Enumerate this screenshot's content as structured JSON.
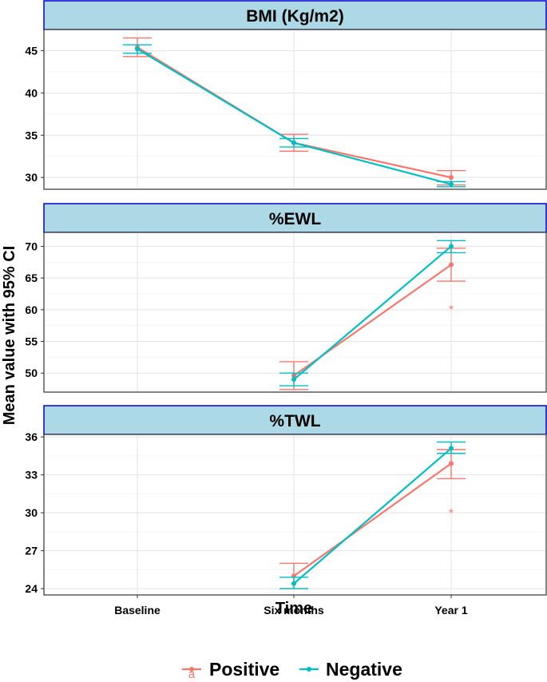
{
  "chart_data": {
    "type": "line",
    "x_label": "Time",
    "y_label": "Mean value with 95% CI",
    "categories": [
      "Baseline",
      "Six months",
      "Year 1"
    ],
    "grid": true,
    "legend_position": "bottom",
    "colors": {
      "Positive": "#F8766D",
      "Negative": "#00BFC4",
      "strip_fill": "#ADD8E6",
      "strip_border": "#0000CD"
    },
    "legend": [
      {
        "name": "Positive",
        "key_glyph": "a"
      },
      {
        "name": "Negative",
        "key_glyph": ""
      }
    ],
    "panels": [
      {
        "title": "BMI (Kg/m2)",
        "ylim": [
          28.6,
          47.5
        ],
        "yticks": [
          30,
          35,
          40,
          45
        ],
        "series": [
          {
            "name": "Positive",
            "x": [
              "Baseline",
              "Six months",
              "Year 1"
            ],
            "y": [
              45.4,
              34.1,
              30.0
            ],
            "lower": [
              44.3,
              33.1,
              29.1
            ],
            "upper": [
              46.5,
              35.1,
              30.8
            ]
          },
          {
            "name": "Negative",
            "x": [
              "Baseline",
              "Six months",
              "Year 1"
            ],
            "y": [
              45.2,
              34.1,
              29.2
            ],
            "lower": [
              44.7,
              33.6,
              28.9
            ],
            "upper": [
              45.7,
              34.6,
              29.5
            ]
          }
        ],
        "annotations": []
      },
      {
        "title": "%EWL",
        "ylim": [
          47.0,
          72.2
        ],
        "yticks": [
          50,
          55,
          60,
          65,
          70
        ],
        "series": [
          {
            "name": "Positive",
            "x": [
              "Six months",
              "Year 1"
            ],
            "y": [
              49.6,
              67.1
            ],
            "lower": [
              47.4,
              64.5
            ],
            "upper": [
              51.8,
              69.7
            ]
          },
          {
            "name": "Negative",
            "x": [
              "Six months",
              "Year 1"
            ],
            "y": [
              49.0,
              70.0
            ],
            "lower": [
              48.0,
              69.0
            ],
            "upper": [
              50.0,
              70.9
            ]
          }
        ],
        "annotations": [
          {
            "text": "*",
            "x": "Year 1",
            "y": 60.5,
            "series": "Positive"
          }
        ]
      },
      {
        "title": "%TWL",
        "ylim": [
          23.5,
          36.2
        ],
        "yticks": [
          24,
          27,
          30,
          33,
          36
        ],
        "series": [
          {
            "name": "Positive",
            "x": [
              "Six months",
              "Year 1"
            ],
            "y": [
              25.0,
              33.9
            ],
            "lower": [
              24.0,
              32.7
            ],
            "upper": [
              26.0,
              35.0
            ]
          },
          {
            "name": "Negative",
            "x": [
              "Six months",
              "Year 1"
            ],
            "y": [
              24.4,
              35.1
            ],
            "lower": [
              24.0,
              34.7
            ],
            "upper": [
              24.9,
              35.6
            ]
          }
        ],
        "annotations": [
          {
            "text": "*",
            "x": "Year 1",
            "y": 30.2,
            "series": "Positive"
          }
        ]
      }
    ]
  }
}
